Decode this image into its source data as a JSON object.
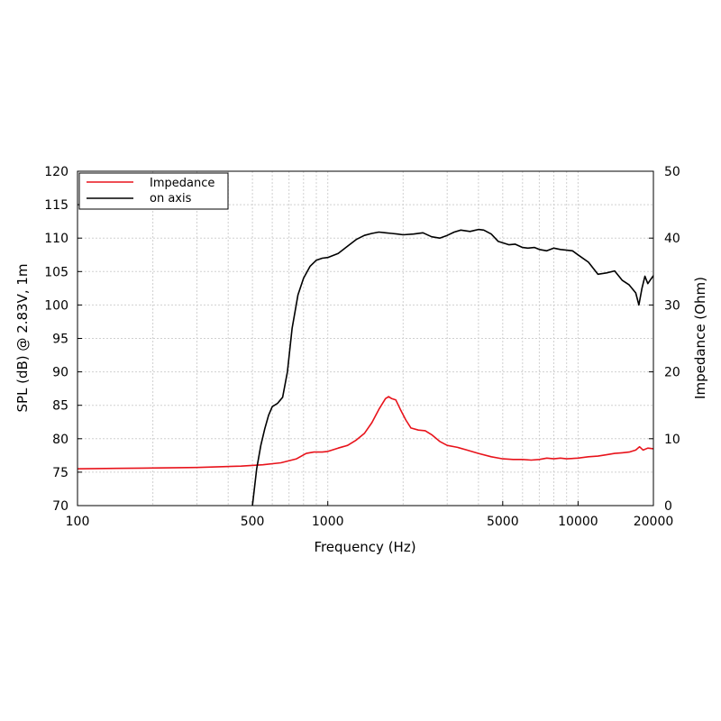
{
  "chart_data": {
    "type": "line",
    "xscale": "log",
    "xlim": [
      100,
      20000
    ],
    "ylim_left": [
      70,
      120
    ],
    "ylim_right": [
      0,
      50
    ],
    "xlabel": "Frequency (Hz)",
    "ylabel_left": "SPL (dB) @ 2.83V, 1m",
    "ylabel_right": "Impedance (Ohm)",
    "x_ticks": [
      100,
      500,
      1000,
      5000,
      10000,
      20000
    ],
    "x_tick_labels": [
      "100",
      "500",
      "1000",
      "5000",
      "10000",
      "20000"
    ],
    "y_left_ticks": [
      70,
      75,
      80,
      85,
      90,
      95,
      100,
      105,
      110,
      115,
      120
    ],
    "y_left_tick_labels": [
      "70",
      "75",
      "80",
      "85",
      "90",
      "95",
      "100",
      "105",
      "110",
      "115",
      "120"
    ],
    "y_right_ticks": [
      0,
      10,
      20,
      30,
      40,
      50
    ],
    "y_right_tick_labels": [
      "0",
      "10",
      "20",
      "30",
      "40",
      "50"
    ],
    "grid": true,
    "legend_position": "top-left",
    "series": [
      {
        "name": "Impedance",
        "axis": "right",
        "color": "#e8131b",
        "x": [
          100,
          180,
          300,
          450,
          550,
          650,
          750,
          820,
          880,
          950,
          1000,
          1100,
          1200,
          1300,
          1400,
          1500,
          1600,
          1700,
          1750,
          1800,
          1870,
          1950,
          2050,
          2150,
          2300,
          2450,
          2600,
          2800,
          3000,
          3300,
          3600,
          4000,
          4500,
          5000,
          5500,
          6000,
          6500,
          7000,
          7500,
          8000,
          8500,
          9000,
          10000,
          11000,
          12000,
          13000,
          14000,
          15000,
          16000,
          17000,
          17600,
          18200,
          19000,
          20000
        ],
        "values": [
          5.5,
          5.6,
          5.7,
          5.9,
          6.1,
          6.4,
          7.0,
          7.8,
          8.0,
          8.0,
          8.1,
          8.6,
          9.0,
          9.8,
          10.8,
          12.4,
          14.4,
          16.0,
          16.3,
          16.0,
          15.8,
          14.4,
          12.8,
          11.6,
          11.3,
          11.2,
          10.6,
          9.6,
          9.0,
          8.7,
          8.3,
          7.8,
          7.3,
          7.0,
          6.9,
          6.9,
          6.8,
          6.9,
          7.1,
          7.0,
          7.1,
          7.0,
          7.1,
          7.3,
          7.4,
          7.6,
          7.8,
          7.9,
          8.0,
          8.3,
          8.8,
          8.3,
          8.6,
          8.5
        ]
      },
      {
        "name": "on axis",
        "axis": "left",
        "color": "#000000",
        "x": [
          500,
          520,
          540,
          560,
          580,
          600,
          630,
          660,
          690,
          720,
          760,
          800,
          850,
          900,
          950,
          1000,
          1100,
          1200,
          1300,
          1400,
          1500,
          1600,
          1700,
          1800,
          1900,
          2000,
          2200,
          2400,
          2600,
          2800,
          3000,
          3200,
          3400,
          3700,
          4000,
          4200,
          4500,
          4800,
          5000,
          5300,
          5600,
          6000,
          6300,
          6700,
          7000,
          7500,
          8000,
          8500,
          9000,
          9500,
          10000,
          11000,
          12000,
          13000,
          14000,
          15000,
          16000,
          17000,
          17500,
          18000,
          18500,
          19000,
          19500,
          20000
        ],
        "values": [
          70.0,
          75.5,
          79.0,
          81.5,
          83.5,
          84.8,
          85.3,
          86.2,
          90.0,
          96.5,
          101.5,
          104.0,
          105.8,
          106.7,
          107.0,
          107.1,
          107.7,
          108.8,
          109.8,
          110.4,
          110.7,
          110.9,
          110.8,
          110.7,
          110.6,
          110.5,
          110.6,
          110.8,
          110.2,
          110.0,
          110.4,
          110.9,
          111.2,
          111.0,
          111.3,
          111.2,
          110.6,
          109.5,
          109.3,
          109.0,
          109.1,
          108.6,
          108.5,
          108.6,
          108.3,
          108.1,
          108.5,
          108.3,
          108.2,
          108.1,
          107.5,
          106.4,
          104.6,
          104.8,
          105.1,
          103.7,
          103.0,
          101.8,
          100.0,
          102.5,
          104.3,
          103.2,
          103.8,
          104.4
        ]
      }
    ]
  }
}
